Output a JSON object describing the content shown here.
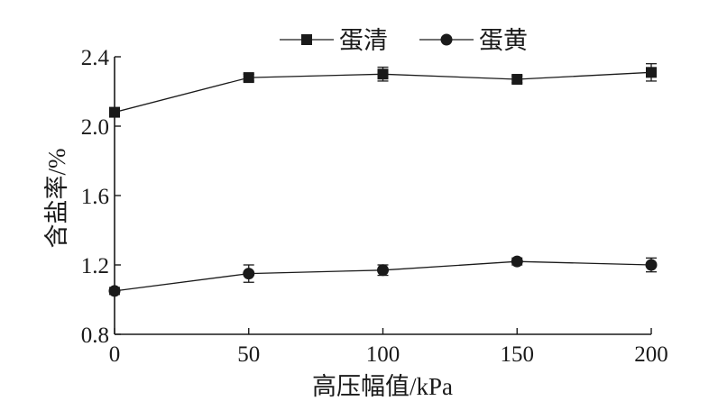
{
  "chart_data": {
    "type": "line",
    "x": [
      0,
      50,
      100,
      150,
      200
    ],
    "xlabel": "高压幅值/kPa",
    "ylabel": "含盐率/%",
    "xlim": [
      0,
      200
    ],
    "ylim": [
      0.8,
      2.4
    ],
    "xticks": [
      0,
      50,
      100,
      150,
      200
    ],
    "yticks": [
      0.8,
      1.2,
      1.6,
      2.0,
      2.4
    ],
    "x_tick_labels": [
      "0",
      "50",
      "100",
      "150",
      "200"
    ],
    "y_tick_labels": [
      "0.8",
      "1.2",
      "1.6",
      "2.0",
      "2.4"
    ],
    "grid": false,
    "legend_position": "top-center",
    "series": [
      {
        "name": "蛋清",
        "marker": "square",
        "values": [
          2.08,
          2.28,
          2.3,
          2.27,
          2.31
        ],
        "errors": [
          0.02,
          0.02,
          0.04,
          0.02,
          0.05
        ]
      },
      {
        "name": "蛋黄",
        "marker": "circle",
        "values": [
          1.05,
          1.15,
          1.17,
          1.22,
          1.2
        ],
        "errors": [
          0.02,
          0.05,
          0.03,
          0.02,
          0.04
        ]
      }
    ]
  }
}
